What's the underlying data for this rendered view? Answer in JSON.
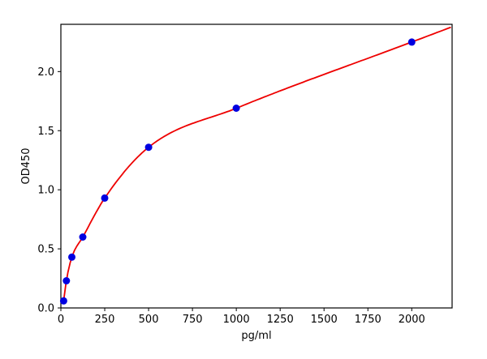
{
  "chart_data": {
    "type": "scatter",
    "title": "",
    "xlabel": "pg/ml",
    "ylabel": "OD450",
    "xlim": [
      0,
      2230
    ],
    "ylim": [
      0,
      2.4
    ],
    "xticks": [
      0,
      250,
      500,
      750,
      1000,
      1250,
      1500,
      1750,
      2000
    ],
    "xtick_labels": [
      "0",
      "250",
      "500",
      "750",
      "1000",
      "1250",
      "1500",
      "1750",
      "2000"
    ],
    "yticks": [
      0,
      0.5,
      1.0,
      1.5,
      2.0
    ],
    "ytick_labels": [
      "0.0",
      "0.5",
      "1.0",
      "1.5",
      "2.0"
    ],
    "grid": false,
    "legend": null,
    "background": "#ffffff",
    "axis_color": "#000000",
    "series": [
      {
        "name": "standard-points",
        "type": "scatter",
        "marker": "circle",
        "color": "#0000e0",
        "x": [
          15.6,
          31.25,
          62.5,
          125,
          250,
          500,
          1000,
          2000
        ],
        "y": [
          0.06,
          0.23,
          0.43,
          0.6,
          0.93,
          1.36,
          1.69,
          2.25
        ]
      },
      {
        "name": "fit-curve",
        "type": "line",
        "color": "#ee0000",
        "style": "smooth-fit-through-points"
      }
    ]
  }
}
